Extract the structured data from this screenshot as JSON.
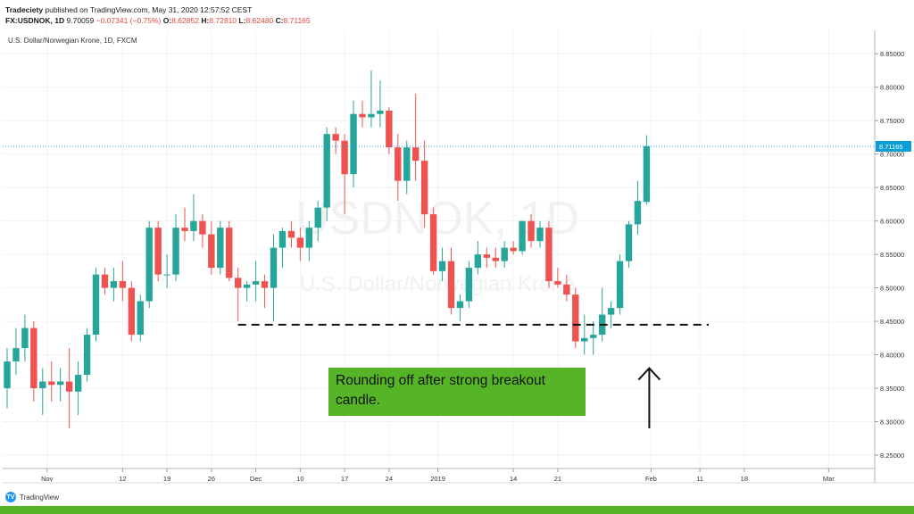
{
  "header": {
    "line1_author": "Tradeciety",
    "line1_rest": " published on TradingView.com, May 31, 2020 12:57:52 CEST",
    "line2_symbol": "FX:USDNOK, 1D",
    "line2_price": "9.70059",
    "line2_change": "−0.07341 (−0.75%)",
    "line2_o_label": "O:",
    "line2_o": "8.62852",
    "line2_h_label": "H:",
    "line2_h": "8.72810",
    "line2_l_label": "L:",
    "line2_l": "8.62480",
    "line2_c_label": "C:",
    "line2_c": "8.71165"
  },
  "footer": {
    "brand": "TradingView"
  },
  "callout": {
    "text": "Rounding off after strong breakout candle."
  },
  "chart_data": {
    "type": "candlestick",
    "title": "U.S. Dollar/Norwegian Krone, 1D, FXCM",
    "watermark_symbol": "USDNOK, 1D",
    "watermark_name": "U.S. Dollar/Norwegian Krone",
    "y_axis": {
      "position": "right",
      "range": [
        8.23,
        8.885
      ],
      "ticks": [
        8.25,
        8.3,
        8.35,
        8.4,
        8.45,
        8.5,
        8.55,
        8.6,
        8.65,
        8.7,
        8.75,
        8.8,
        8.85
      ],
      "tick_labels": [
        "8.25000",
        "8.30000",
        "8.35000",
        "8.40000",
        "8.45000",
        "8.50000",
        "8.55000",
        "8.60000",
        "8.65000",
        "8.70000",
        "8.75000",
        "8.80000",
        "8.85000"
      ]
    },
    "x_axis": {
      "tick_labels": [
        {
          "label": "Nov",
          "bar": 4.5
        },
        {
          "label": "12",
          "bar": 13
        },
        {
          "label": "19",
          "bar": 18
        },
        {
          "label": "26",
          "bar": 23
        },
        {
          "label": "Dec",
          "bar": 28
        },
        {
          "label": "10",
          "bar": 33
        },
        {
          "label": "17",
          "bar": 38
        },
        {
          "label": "24",
          "bar": 43
        },
        {
          "label": "2019",
          "bar": 48.5
        },
        {
          "label": "14",
          "bar": 57
        },
        {
          "label": "21",
          "bar": 62
        },
        {
          "label": "Feb",
          "bar": 72.5
        },
        {
          "label": "11",
          "bar": 78
        },
        {
          "label": "18",
          "bar": 83
        },
        {
          "label": "Mar",
          "bar": 92.5
        }
      ]
    },
    "grid": true,
    "up_color": "#26a69a",
    "down_color": "#ef5350",
    "last_price": {
      "value": 8.71165,
      "label": "8.71165",
      "color": "#0b9ed6"
    },
    "support_line": {
      "value": 8.445,
      "from_bar": 26,
      "to_bar": 79,
      "style": "dashed"
    },
    "arrow": {
      "bar": 72,
      "from_value": 8.29,
      "to_value": 8.38,
      "direction": "up"
    },
    "candles": [
      {
        "i": 0,
        "o": 8.35,
        "h": 8.41,
        "l": 8.32,
        "c": 8.39
      },
      {
        "i": 1,
        "o": 8.39,
        "h": 8.44,
        "l": 8.37,
        "c": 8.41
      },
      {
        "i": 2,
        "o": 8.41,
        "h": 8.46,
        "l": 8.39,
        "c": 8.44
      },
      {
        "i": 3,
        "o": 8.44,
        "h": 8.45,
        "l": 8.33,
        "c": 8.35
      },
      {
        "i": 4,
        "o": 8.35,
        "h": 8.38,
        "l": 8.31,
        "c": 8.36
      },
      {
        "i": 5,
        "o": 8.36,
        "h": 8.39,
        "l": 8.33,
        "c": 8.355
      },
      {
        "i": 6,
        "o": 8.355,
        "h": 8.38,
        "l": 8.33,
        "c": 8.36
      },
      {
        "i": 7,
        "o": 8.36,
        "h": 8.41,
        "l": 8.29,
        "c": 8.345
      },
      {
        "i": 8,
        "o": 8.345,
        "h": 8.39,
        "l": 8.31,
        "c": 8.37
      },
      {
        "i": 9,
        "o": 8.37,
        "h": 8.44,
        "l": 8.36,
        "c": 8.43
      },
      {
        "i": 10,
        "o": 8.43,
        "h": 8.53,
        "l": 8.42,
        "c": 8.52
      },
      {
        "i": 11,
        "o": 8.52,
        "h": 8.53,
        "l": 8.49,
        "c": 8.5
      },
      {
        "i": 12,
        "o": 8.5,
        "h": 8.53,
        "l": 8.48,
        "c": 8.51
      },
      {
        "i": 13,
        "o": 8.51,
        "h": 8.54,
        "l": 8.48,
        "c": 8.5
      },
      {
        "i": 14,
        "o": 8.5,
        "h": 8.51,
        "l": 8.42,
        "c": 8.43
      },
      {
        "i": 15,
        "o": 8.43,
        "h": 8.49,
        "l": 8.42,
        "c": 8.48
      },
      {
        "i": 16,
        "o": 8.48,
        "h": 8.6,
        "l": 8.47,
        "c": 8.59
      },
      {
        "i": 17,
        "o": 8.59,
        "h": 8.6,
        "l": 8.51,
        "c": 8.52
      },
      {
        "i": 18,
        "o": 8.52,
        "h": 8.55,
        "l": 8.5,
        "c": 8.52
      },
      {
        "i": 19,
        "o": 8.52,
        "h": 8.61,
        "l": 8.51,
        "c": 8.59
      },
      {
        "i": 20,
        "o": 8.59,
        "h": 8.62,
        "l": 8.57,
        "c": 8.585
      },
      {
        "i": 21,
        "o": 8.585,
        "h": 8.64,
        "l": 8.57,
        "c": 8.6
      },
      {
        "i": 22,
        "o": 8.6,
        "h": 8.61,
        "l": 8.56,
        "c": 8.58
      },
      {
        "i": 23,
        "o": 8.58,
        "h": 8.6,
        "l": 8.52,
        "c": 8.53
      },
      {
        "i": 24,
        "o": 8.53,
        "h": 8.6,
        "l": 8.52,
        "c": 8.59
      },
      {
        "i": 25,
        "o": 8.59,
        "h": 8.6,
        "l": 8.51,
        "c": 8.515
      },
      {
        "i": 26,
        "o": 8.515,
        "h": 8.53,
        "l": 8.45,
        "c": 8.5
      },
      {
        "i": 27,
        "o": 8.5,
        "h": 8.51,
        "l": 8.48,
        "c": 8.505
      },
      {
        "i": 28,
        "o": 8.505,
        "h": 8.54,
        "l": 8.48,
        "c": 8.51
      },
      {
        "i": 29,
        "o": 8.51,
        "h": 8.52,
        "l": 8.47,
        "c": 8.5
      },
      {
        "i": 30,
        "o": 8.5,
        "h": 8.58,
        "l": 8.45,
        "c": 8.56
      },
      {
        "i": 31,
        "o": 8.56,
        "h": 8.59,
        "l": 8.53,
        "c": 8.585
      },
      {
        "i": 32,
        "o": 8.585,
        "h": 8.6,
        "l": 8.56,
        "c": 8.575
      },
      {
        "i": 33,
        "o": 8.575,
        "h": 8.59,
        "l": 8.54,
        "c": 8.56
      },
      {
        "i": 34,
        "o": 8.56,
        "h": 8.6,
        "l": 8.54,
        "c": 8.59
      },
      {
        "i": 35,
        "o": 8.59,
        "h": 8.63,
        "l": 8.57,
        "c": 8.62
      },
      {
        "i": 36,
        "o": 8.62,
        "h": 8.74,
        "l": 8.6,
        "c": 8.73
      },
      {
        "i": 37,
        "o": 8.73,
        "h": 8.74,
        "l": 8.7,
        "c": 8.72
      },
      {
        "i": 38,
        "o": 8.72,
        "h": 8.73,
        "l": 8.61,
        "c": 8.67
      },
      {
        "i": 39,
        "o": 8.67,
        "h": 8.78,
        "l": 8.65,
        "c": 8.76
      },
      {
        "i": 40,
        "o": 8.76,
        "h": 8.78,
        "l": 8.74,
        "c": 8.755
      },
      {
        "i": 41,
        "o": 8.755,
        "h": 8.825,
        "l": 8.74,
        "c": 8.76
      },
      {
        "i": 42,
        "o": 8.76,
        "h": 8.81,
        "l": 8.74,
        "c": 8.765
      },
      {
        "i": 43,
        "o": 8.765,
        "h": 8.77,
        "l": 8.7,
        "c": 8.71
      },
      {
        "i": 44,
        "o": 8.71,
        "h": 8.73,
        "l": 8.63,
        "c": 8.66
      },
      {
        "i": 45,
        "o": 8.66,
        "h": 8.72,
        "l": 8.64,
        "c": 8.71
      },
      {
        "i": 46,
        "o": 8.71,
        "h": 8.79,
        "l": 8.66,
        "c": 8.69
      },
      {
        "i": 47,
        "o": 8.69,
        "h": 8.72,
        "l": 8.59,
        "c": 8.61
      },
      {
        "i": 48,
        "o": 8.61,
        "h": 8.62,
        "l": 8.52,
        "c": 8.525
      },
      {
        "i": 49,
        "o": 8.525,
        "h": 8.56,
        "l": 8.51,
        "c": 8.54
      },
      {
        "i": 50,
        "o": 8.54,
        "h": 8.56,
        "l": 8.46,
        "c": 8.47
      },
      {
        "i": 51,
        "o": 8.47,
        "h": 8.49,
        "l": 8.45,
        "c": 8.48
      },
      {
        "i": 52,
        "o": 8.48,
        "h": 8.54,
        "l": 8.47,
        "c": 8.53
      },
      {
        "i": 53,
        "o": 8.53,
        "h": 8.57,
        "l": 8.52,
        "c": 8.55
      },
      {
        "i": 54,
        "o": 8.55,
        "h": 8.56,
        "l": 8.53,
        "c": 8.545
      },
      {
        "i": 55,
        "o": 8.545,
        "h": 8.56,
        "l": 8.53,
        "c": 8.54
      },
      {
        "i": 56,
        "o": 8.54,
        "h": 8.57,
        "l": 8.53,
        "c": 8.56
      },
      {
        "i": 57,
        "o": 8.56,
        "h": 8.57,
        "l": 8.55,
        "c": 8.555
      },
      {
        "i": 58,
        "o": 8.555,
        "h": 8.6,
        "l": 8.55,
        "c": 8.6
      },
      {
        "i": 59,
        "o": 8.6,
        "h": 8.61,
        "l": 8.56,
        "c": 8.57
      },
      {
        "i": 60,
        "o": 8.57,
        "h": 8.6,
        "l": 8.56,
        "c": 8.59
      },
      {
        "i": 61,
        "o": 8.59,
        "h": 8.6,
        "l": 8.5,
        "c": 8.51
      },
      {
        "i": 62,
        "o": 8.51,
        "h": 8.53,
        "l": 8.5,
        "c": 8.505
      },
      {
        "i": 63,
        "o": 8.505,
        "h": 8.52,
        "l": 8.48,
        "c": 8.49
      },
      {
        "i": 64,
        "o": 8.49,
        "h": 8.5,
        "l": 8.41,
        "c": 8.42
      },
      {
        "i": 65,
        "o": 8.42,
        "h": 8.46,
        "l": 8.4,
        "c": 8.425
      },
      {
        "i": 66,
        "o": 8.425,
        "h": 8.45,
        "l": 8.4,
        "c": 8.43
      },
      {
        "i": 67,
        "o": 8.43,
        "h": 8.5,
        "l": 8.42,
        "c": 8.46
      },
      {
        "i": 68,
        "o": 8.46,
        "h": 8.48,
        "l": 8.44,
        "c": 8.47
      },
      {
        "i": 69,
        "o": 8.47,
        "h": 8.55,
        "l": 8.46,
        "c": 8.54
      },
      {
        "i": 70,
        "o": 8.54,
        "h": 8.6,
        "l": 8.53,
        "c": 8.595
      },
      {
        "i": 71,
        "o": 8.595,
        "h": 8.66,
        "l": 8.58,
        "c": 8.63
      },
      {
        "i": 72,
        "o": 8.62852,
        "h": 8.7281,
        "l": 8.6248,
        "c": 8.71165
      }
    ]
  }
}
